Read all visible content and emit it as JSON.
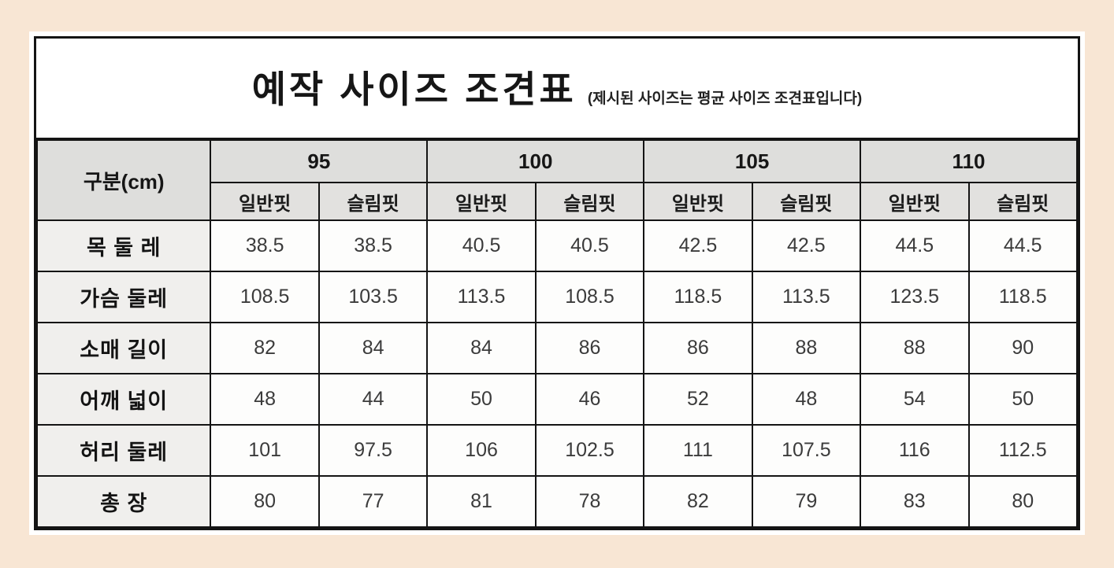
{
  "page": {
    "background_color": "#f8e6d4",
    "sheet_color": "#ffffff",
    "border_color": "#141414",
    "header_bg_color": "#dededc",
    "row_label_bg_color": "#f0efed",
    "value_text_color": "#3b3b3b"
  },
  "chart_data": {
    "type": "table",
    "title": "예작 사이즈 조견표",
    "subtitle": "(제시된 사이즈는 평균 사이즈 조견표입니다)",
    "corner_header": "구분(cm)",
    "size_groups": [
      "95",
      "100",
      "105",
      "110"
    ],
    "fit_labels": [
      "일반핏",
      "슬림핏"
    ],
    "rows": [
      {
        "label": "목 둘 레",
        "values": [
          "38.5",
          "38.5",
          "40.5",
          "40.5",
          "42.5",
          "42.5",
          "44.5",
          "44.5"
        ]
      },
      {
        "label": "가슴 둘레",
        "values": [
          "108.5",
          "103.5",
          "113.5",
          "108.5",
          "118.5",
          "113.5",
          "123.5",
          "118.5"
        ]
      },
      {
        "label": "소매 길이",
        "values": [
          "82",
          "84",
          "84",
          "86",
          "86",
          "88",
          "88",
          "90"
        ]
      },
      {
        "label": "어깨 넓이",
        "values": [
          "48",
          "44",
          "50",
          "46",
          "52",
          "48",
          "54",
          "50"
        ]
      },
      {
        "label": "허리 둘레",
        "values": [
          "101",
          "97.5",
          "106",
          "102.5",
          "111",
          "107.5",
          "116",
          "112.5"
        ]
      },
      {
        "label": "총 장",
        "values": [
          "80",
          "77",
          "81",
          "78",
          "82",
          "79",
          "83",
          "80"
        ]
      }
    ]
  }
}
